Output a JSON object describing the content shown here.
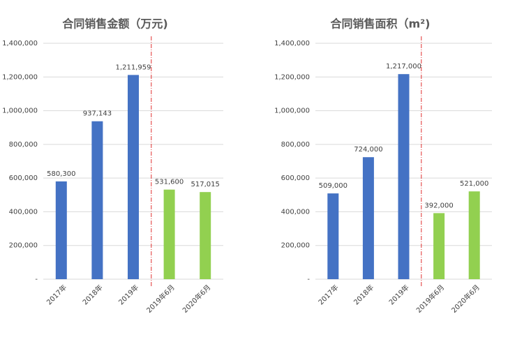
{
  "chart_data": [
    {
      "type": "bar",
      "title": "合同销售金额（万元)",
      "categories": [
        "2017年",
        "2018年",
        "2019年",
        "2019年6月",
        "2020年6月"
      ],
      "values": [
        580300,
        937143,
        1211959,
        531600,
        517015
      ],
      "value_labels": [
        "580,300",
        "937,143",
        "1,211,959",
        "531,600",
        "517,015"
      ],
      "colors": [
        "#4472c4",
        "#4472c4",
        "#4472c4",
        "#92d050",
        "#92d050"
      ],
      "ylim": [
        0,
        1400000
      ],
      "yticks": [
        {
          "value": 0,
          "label": "-"
        },
        {
          "value": 200000,
          "label": "200,000"
        },
        {
          "value": 400000,
          "label": "400,000"
        },
        {
          "value": 600000,
          "label": "600,000"
        },
        {
          "value": 800000,
          "label": "800,000"
        },
        {
          "value": 1000000,
          "label": "1,000,000"
        },
        {
          "value": 1200000,
          "label": "1,200,000"
        },
        {
          "value": 1400000,
          "label": "1,400,000"
        }
      ],
      "grid": true
    },
    {
      "type": "bar",
      "title": "合同销售面积（m²)",
      "categories": [
        "2017年",
        "2018年",
        "2019年",
        "2019年6月",
        "2020年6月"
      ],
      "values": [
        509000,
        724000,
        1217000,
        392000,
        521000
      ],
      "value_labels": [
        "509,000",
        "724,000",
        "1,217,000",
        "392,000",
        "521,000"
      ],
      "colors": [
        "#4472c4",
        "#4472c4",
        "#4472c4",
        "#92d050",
        "#92d050"
      ],
      "ylim": [
        0,
        1400000
      ],
      "yticks": [
        {
          "value": 0,
          "label": "-"
        },
        {
          "value": 200000,
          "label": "200,000"
        },
        {
          "value": 400000,
          "label": "400,000"
        },
        {
          "value": 600000,
          "label": "600,000"
        },
        {
          "value": 800000,
          "label": "800,000"
        },
        {
          "value": 1000000,
          "label": "1,000,000"
        },
        {
          "value": 1200000,
          "label": "1,200,000"
        },
        {
          "value": 1400000,
          "label": "1,400,000"
        }
      ],
      "grid": true
    }
  ]
}
